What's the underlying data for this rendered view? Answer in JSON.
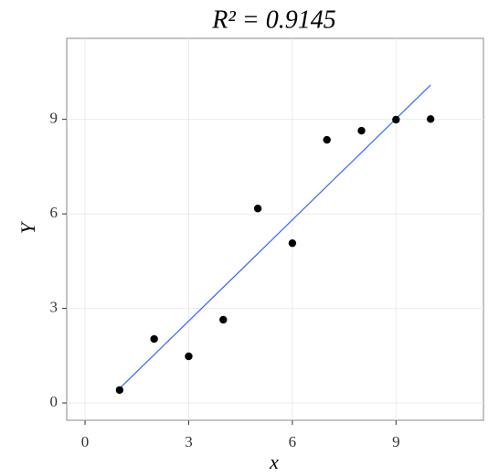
{
  "chart_data": {
    "type": "scatter",
    "title": "R² = 0.9145",
    "x_label": "x",
    "y_label": "Y",
    "x": [
      1,
      2,
      3,
      4,
      5,
      6,
      7,
      8,
      9,
      10
    ],
    "values": [
      0.41,
      2.03,
      1.48,
      2.64,
      6.17,
      5.07,
      8.35,
      8.64,
      8.99,
      9.01
    ],
    "color": "#000000",
    "fit": {
      "x": [
        1,
        10
      ],
      "y": [
        0.46,
        10.09
      ],
      "color": "#3366ff"
    },
    "xlim": [
      -0.53,
      11.53
    ],
    "ylim": [
      -0.55,
      11.57
    ],
    "xticks": [
      0,
      3,
      6,
      9
    ],
    "yticks": [
      0,
      3,
      6,
      9
    ],
    "grid": true
  }
}
